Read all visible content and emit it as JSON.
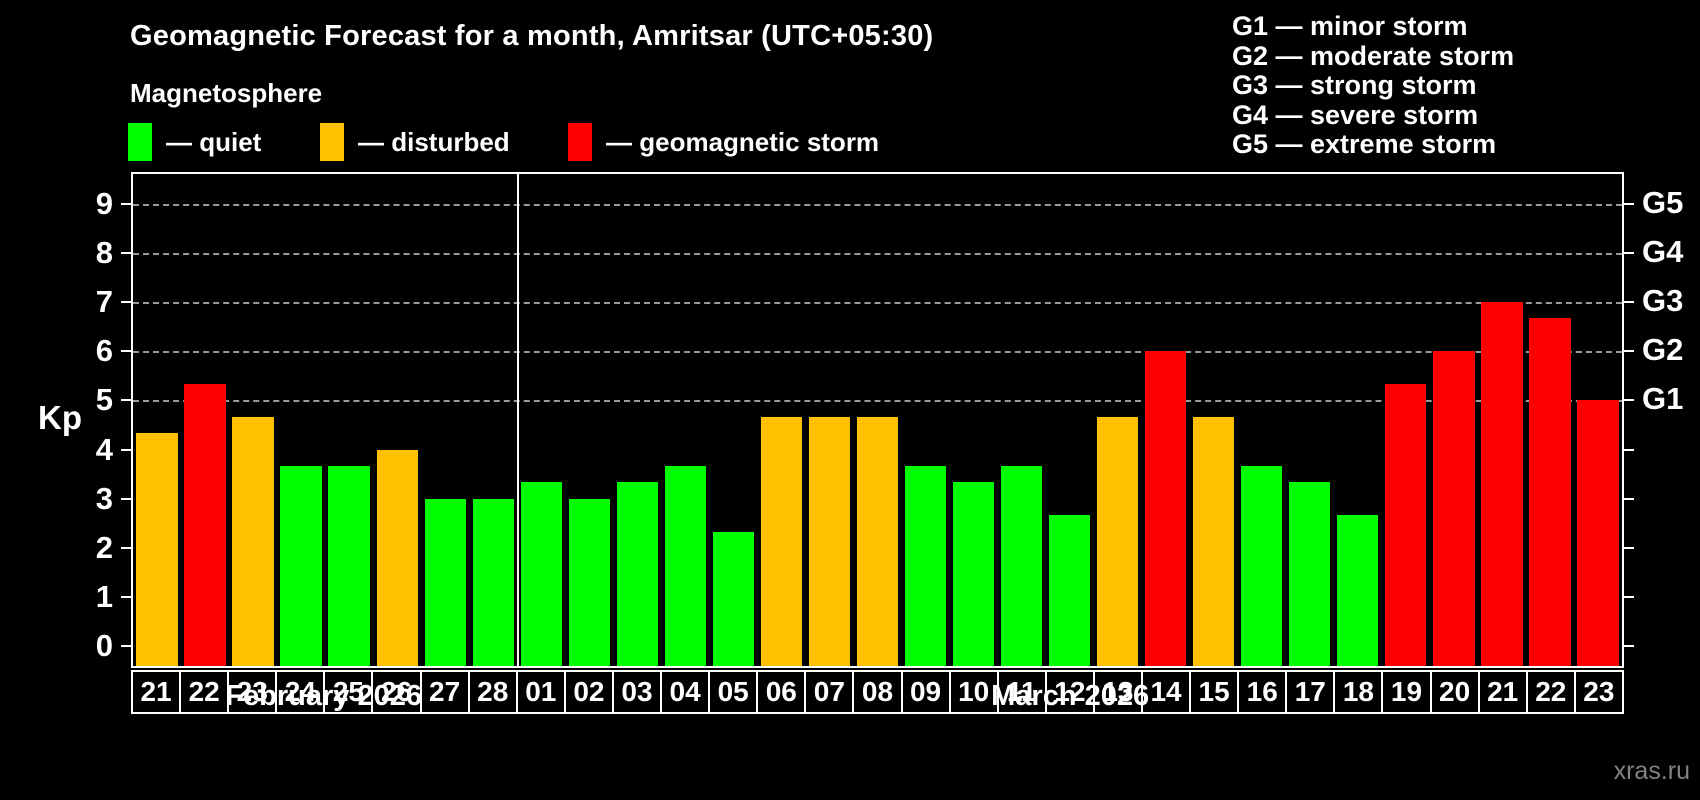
{
  "title": "Geomagnetic Forecast for a month, Amritsar (UTC+05:30)",
  "subtitle": "Magnetosphere",
  "colors": {
    "quiet": "#00ff00",
    "disturbed": "#ffc000",
    "storm": "#ff0000",
    "background": "#000000",
    "text": "#ffffff",
    "gridline": "#9a9a9a",
    "watermark": "#828282"
  },
  "legend": {
    "items": [
      {
        "key": "quiet",
        "label": "— quiet",
        "color": "#00ff00"
      },
      {
        "key": "disturbed",
        "label": "— disturbed",
        "color": "#ffc000"
      },
      {
        "key": "storm",
        "label": "— geomagnetic storm",
        "color": "#ff0000"
      }
    ]
  },
  "g_scale_legend": [
    "G1 — minor storm",
    "G2 — moderate storm",
    "G3 — strong storm",
    "G4 — severe storm",
    "G5 — extreme storm"
  ],
  "y_axis": {
    "label": "Kp",
    "ticks": [
      0,
      1,
      2,
      3,
      4,
      5,
      6,
      7,
      8,
      9
    ]
  },
  "right_axis": {
    "labels": [
      {
        "kp": 5,
        "label": "G1"
      },
      {
        "kp": 6,
        "label": "G2"
      },
      {
        "kp": 7,
        "label": "G3"
      },
      {
        "kp": 8,
        "label": "G4"
      },
      {
        "kp": 9,
        "label": "G5"
      }
    ]
  },
  "months": [
    {
      "label": "February 2026",
      "days": 8
    },
    {
      "label": "March 2026",
      "days": 23
    }
  ],
  "watermark": "xras.ru",
  "chart_data": {
    "type": "bar",
    "title": "Geomagnetic Forecast for a month, Amritsar (UTC+05:30)",
    "xlabel": "",
    "ylabel": "Kp",
    "ylim": [
      0,
      9
    ],
    "grid_kp_levels": [
      5,
      6,
      7,
      8,
      9
    ],
    "grid_style": "dashed",
    "legend_position": "top-left",
    "categories": [
      "21",
      "22",
      "23",
      "24",
      "25",
      "26",
      "27",
      "28",
      "01",
      "02",
      "03",
      "04",
      "05",
      "06",
      "07",
      "08",
      "09",
      "10",
      "11",
      "12",
      "13",
      "14",
      "15",
      "16",
      "17",
      "18",
      "19",
      "20",
      "21",
      "22",
      "23"
    ],
    "series": [
      {
        "name": "Kp forecast",
        "values": [
          4.33,
          5.33,
          4.67,
          3.67,
          3.67,
          4,
          3,
          3,
          3.33,
          3,
          3.33,
          3.67,
          2.33,
          4.67,
          4.67,
          4.67,
          3.67,
          3.33,
          3.67,
          2.67,
          4.67,
          6,
          4.67,
          3.67,
          3.33,
          2.67,
          5.33,
          6,
          7,
          6.67,
          5
        ]
      }
    ],
    "bar_status": [
      "disturbed",
      "storm",
      "disturbed",
      "quiet",
      "quiet",
      "disturbed",
      "quiet",
      "quiet",
      "quiet",
      "quiet",
      "quiet",
      "quiet",
      "quiet",
      "disturbed",
      "disturbed",
      "disturbed",
      "quiet",
      "quiet",
      "quiet",
      "quiet",
      "disturbed",
      "storm",
      "disturbed",
      "quiet",
      "quiet",
      "quiet",
      "storm",
      "storm",
      "storm",
      "storm",
      "storm"
    ]
  }
}
